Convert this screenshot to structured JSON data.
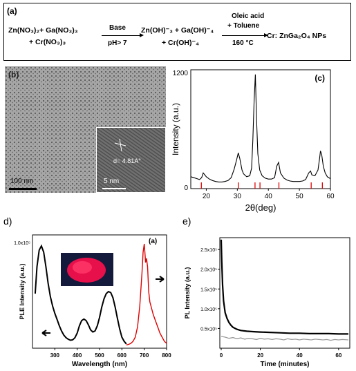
{
  "figure": {
    "panel_a": {
      "label": "(a)",
      "reactant_line1": "Zn(NO₃)₂+ Ga(NO₃)₃",
      "reactant_line2": "+ Cr(NO₃)₃",
      "arrow1_top": "Base",
      "arrow1_bottom": "pH> 7",
      "intermediate_line1": "Zn(OH)⁻₃ + Ga(OH)⁻₄",
      "intermediate_line2": "+ Cr(OH)⁻₄",
      "arrow2_top1": "Oleic acid",
      "arrow2_top2": "+ Toluene",
      "arrow2_bottom": "160 °C",
      "product": "Cr: ZnGa₂O₄ NPs"
    },
    "panel_b": {
      "label": "(b)",
      "scalebar_main": "100 nm",
      "scalebar_inset": "5 nm",
      "lattice_spacing": "d= 4.81A°"
    },
    "panel_d": {
      "label": "d)",
      "inner_label": "(a)"
    },
    "panel_e": {
      "label": "e)"
    }
  },
  "chart_data": [
    {
      "id": "c",
      "type": "line",
      "title": "(c)",
      "xlabel": "2θ(deg)",
      "ylabel": "Intensity (a.u.)",
      "xlim": [
        15,
        60
      ],
      "ylim": [
        0,
        1200
      ],
      "xticks": [
        20,
        30,
        40,
        50,
        60
      ],
      "yticks": [
        0,
        1200
      ],
      "x": [
        15,
        16,
        17,
        17.8,
        18.5,
        19,
        20,
        21,
        22,
        23,
        24,
        25,
        26,
        27,
        28,
        29,
        29.8,
        30.3,
        30.8,
        31.5,
        32,
        33,
        34,
        34.6,
        35.0,
        35.4,
        35.8,
        36.2,
        36.6,
        37.2,
        38,
        39,
        40,
        41,
        42,
        42.7,
        43.3,
        43.9,
        45,
        46,
        47,
        48,
        49,
        50,
        51,
        52,
        53,
        53.6,
        54,
        55,
        56,
        56.5,
        56.8,
        57.2,
        57.7,
        58.3,
        59,
        60
      ],
      "y": [
        110,
        100,
        90,
        80,
        100,
        150,
        110,
        85,
        70,
        60,
        55,
        55,
        60,
        70,
        100,
        190,
        290,
        360,
        300,
        180,
        140,
        110,
        120,
        200,
        500,
        900,
        1180,
        700,
        350,
        180,
        120,
        95,
        85,
        85,
        100,
        220,
        260,
        150,
        95,
        75,
        65,
        60,
        60,
        60,
        65,
        80,
        150,
        170,
        130,
        120,
        180,
        300,
        380,
        340,
        220,
        150,
        110,
        90
      ],
      "reference_ticks": [
        18.4,
        30.3,
        35.7,
        37.3,
        43.4,
        53.8,
        57.4
      ]
    },
    {
      "id": "d",
      "type": "line",
      "xlabel": "Wavelength (nm)",
      "ylabel": "PLE Intensity (a.u.)",
      "xlim": [
        200,
        800
      ],
      "ylim": [
        0,
        1000
      ],
      "xticks": [
        300,
        400,
        500,
        600,
        700,
        800
      ],
      "yticks_text": [
        "1.0x10⁵"
      ],
      "series": [
        {
          "color": "#000000",
          "x": [
            212,
            220,
            230,
            240,
            250,
            260,
            270,
            280,
            290,
            300,
            310,
            320,
            330,
            340,
            350,
            360,
            370,
            380,
            390,
            400,
            410,
            420,
            430,
            440,
            450,
            460,
            470,
            480,
            490,
            500,
            510,
            520,
            530,
            540,
            550,
            560,
            570,
            580,
            590,
            600,
            610,
            620
          ],
          "y": [
            500,
            760,
            920,
            960,
            900,
            760,
            600,
            470,
            380,
            310,
            250,
            190,
            140,
            100,
            75,
            60,
            50,
            55,
            75,
            120,
            190,
            240,
            255,
            240,
            200,
            150,
            130,
            140,
            190,
            270,
            370,
            450,
            500,
            520,
            510,
            460,
            370,
            260,
            160,
            80,
            40,
            15
          ]
        },
        {
          "color": "#e00000",
          "x": [
            620,
            630,
            640,
            650,
            660,
            670,
            680,
            690,
            695,
            700,
            703,
            706,
            710,
            715,
            720,
            725,
            730,
            740,
            750,
            760,
            770,
            780,
            790,
            800
          ],
          "y": [
            5,
            10,
            20,
            40,
            80,
            180,
            380,
            700,
            900,
            980,
            900,
            800,
            840,
            760,
            520,
            420,
            380,
            300,
            240,
            180,
            120,
            80,
            40,
            20
          ]
        }
      ]
    },
    {
      "id": "e",
      "type": "line",
      "xlabel": "Time (minutes)",
      "ylabel": "PL Intensity (a.u.)",
      "xlim": [
        0,
        65
      ],
      "ylim": [
        0,
        2.8
      ],
      "xticks": [
        0,
        20,
        40,
        60
      ],
      "yticks_text": [
        "0.5x10⁵",
        "1.0x10⁵",
        "1.5x10⁵",
        "2.0x10⁵",
        "2.5x10⁵"
      ],
      "series": [
        {
          "color": "#000000",
          "x": [
            0,
            0.3,
            0.7,
            1.2,
            2,
            3,
            4,
            5,
            6,
            8,
            10,
            13,
            16,
            20,
            25,
            30,
            35,
            40,
            45,
            50,
            55,
            60,
            65
          ],
          "y": [
            2.75,
            2.2,
            1.6,
            1.2,
            0.9,
            0.75,
            0.65,
            0.58,
            0.53,
            0.48,
            0.45,
            0.43,
            0.42,
            0.41,
            0.4,
            0.39,
            0.38,
            0.38,
            0.37,
            0.37,
            0.37,
            0.36,
            0.36
          ]
        },
        {
          "color": "#9a9a9a",
          "x": [
            0,
            2,
            4,
            6,
            8,
            10,
            12,
            14,
            16,
            18,
            20,
            22,
            24,
            26,
            28,
            30,
            32,
            34,
            36,
            38,
            40,
            42,
            44,
            46,
            48,
            50,
            52,
            54,
            56,
            58,
            60,
            62,
            65
          ],
          "y": [
            0.3,
            0.28,
            0.25,
            0.27,
            0.24,
            0.26,
            0.23,
            0.25,
            0.24,
            0.22,
            0.25,
            0.23,
            0.24,
            0.22,
            0.24,
            0.23,
            0.21,
            0.24,
            0.22,
            0.23,
            0.21,
            0.23,
            0.22,
            0.21,
            0.23,
            0.22,
            0.21,
            0.22,
            0.2,
            0.22,
            0.21,
            0.22,
            0.21
          ]
        }
      ]
    }
  ]
}
